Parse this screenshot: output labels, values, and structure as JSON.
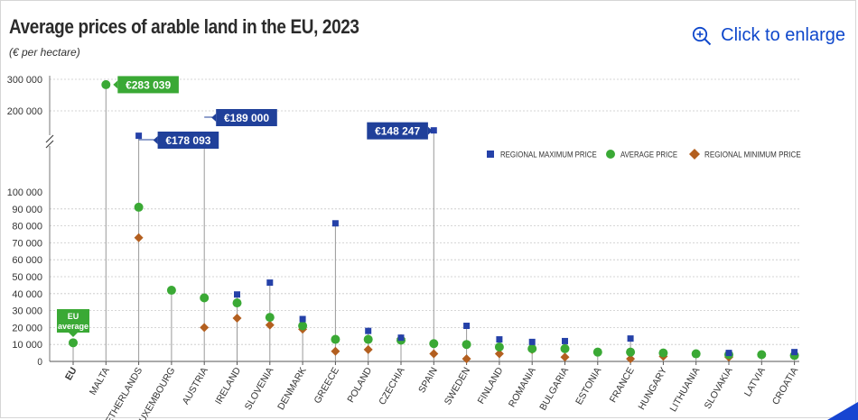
{
  "title": "Average prices of arable land in the EU, 2023",
  "subtitle": "(€ per hectare)",
  "enlarge_label": "Click to enlarge",
  "colors": {
    "regional_max": "#2541a8",
    "average": "#3aa935",
    "regional_min": "#b35f1f",
    "callout_blue": "#20409a",
    "callout_green": "#3aa935",
    "grid": "#c8c8c8",
    "stem": "#999999"
  },
  "chart_data": {
    "type": "scatter",
    "title": "Average prices of arable land in the EU, 2023",
    "unit": "€ per hectare",
    "y_ticks_lower": [
      "0",
      "10 000",
      "20 000",
      "30 000",
      "40 000",
      "50 000",
      "60 000",
      "70 000",
      "80 000",
      "90 000",
      "100 000"
    ],
    "y_ticks_upper": [
      "200 000",
      "300 000"
    ],
    "y_axis_break": true,
    "ylim_lower": [
      0,
      100000
    ],
    "ylim_upper": [
      200000,
      300000
    ],
    "categories": [
      "EU",
      "MALTA",
      "NETHERLANDS",
      "LUXEMBOURG",
      "AUSTRIA",
      "IRELAND",
      "SLOVENIA",
      "DENMARK",
      "GREECE",
      "POLAND",
      "CZECHIA",
      "SPAIN",
      "SWEDEN",
      "FINLAND",
      "ROMANIA",
      "BULGARIA",
      "ESTONIA",
      "FRANCE",
      "HUNGARY",
      "LITHUANIA",
      "SLOVAKIA",
      "LATVIA",
      "CROATIA"
    ],
    "series": [
      {
        "name": "REGIONAL MAXIMUM PRICE",
        "marker": "square",
        "values": [
          null,
          null,
          178093,
          null,
          189000,
          39500,
          46500,
          25000,
          81500,
          18000,
          14000,
          148247,
          21000,
          13000,
          11500,
          12000,
          null,
          13500,
          null,
          null,
          5000,
          null,
          5500
        ]
      },
      {
        "name": "AVERAGE PRICE",
        "marker": "circle",
        "values": [
          11000,
          283039,
          91000,
          42000,
          37500,
          34500,
          26000,
          21000,
          13000,
          13000,
          12500,
          10500,
          10000,
          8500,
          7500,
          7500,
          5500,
          5500,
          5000,
          4500,
          4000,
          4000,
          3500
        ]
      },
      {
        "name": "REGIONAL MINIMUM PRICE",
        "marker": "diamond",
        "values": [
          null,
          null,
          73000,
          null,
          20000,
          25500,
          21500,
          19000,
          6000,
          7000,
          13500,
          4500,
          1500,
          4500,
          7000,
          2500,
          null,
          1500,
          3000,
          null,
          2500,
          null,
          null
        ]
      }
    ],
    "callouts": [
      {
        "category": "MALTA",
        "text": "€283 039",
        "style": "green"
      },
      {
        "category": "NETHERLANDS",
        "text": "€178 093",
        "style": "blue"
      },
      {
        "category": "AUSTRIA",
        "text": "€189 000",
        "style": "blue"
      },
      {
        "category": "SPAIN",
        "text": "€148 247",
        "style": "blue"
      },
      {
        "category": "EU",
        "text_lines": [
          "EU",
          "average"
        ],
        "style": "green"
      }
    ],
    "legend_position": "top-right",
    "grid": true
  }
}
